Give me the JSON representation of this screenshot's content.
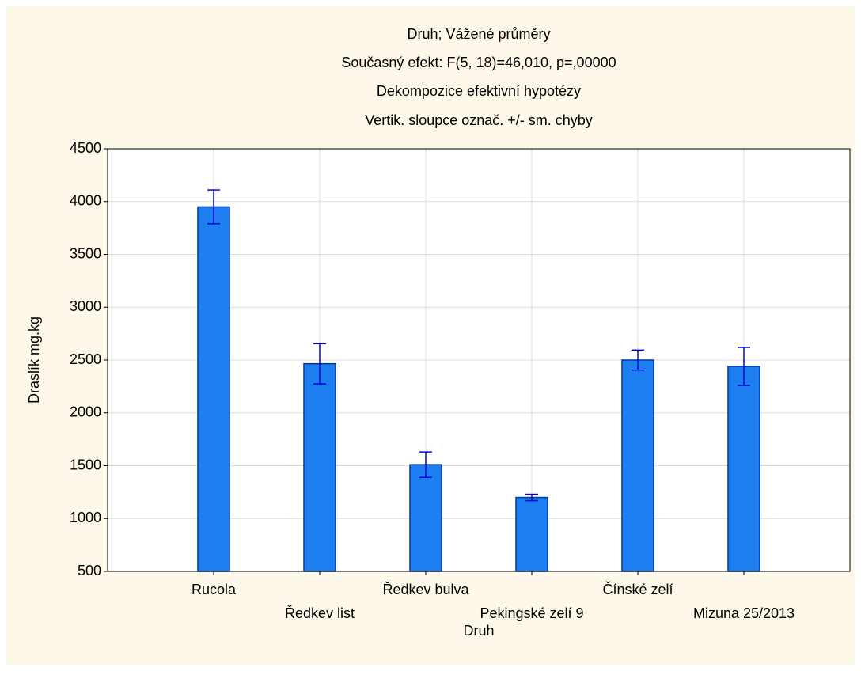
{
  "chart_data": {
    "type": "bar",
    "title": "Druh; Vážené průměry",
    "subtitles": [
      "Současný efekt: F(5, 18)=46,010, p=,00000",
      "Dekompozice efektivní hypotézy",
      "Vertik. sloupce označ. +/- sm. chyby"
    ],
    "x_label": "Druh",
    "y_label": "Draslík mg.kg",
    "categories": [
      "Rucola",
      "Ředkev list",
      "Ředkev bulva",
      "Pekingské zelí 9",
      "Čínské zelí",
      "Mizuna 25/2013"
    ],
    "values": [
      3950,
      2465,
      1510,
      1200,
      2500,
      2440
    ],
    "errors": [
      160,
      190,
      120,
      30,
      95,
      180
    ],
    "color": "#1e80f0",
    "error_color": "#0000dd",
    "ylim": [
      500,
      4500
    ],
    "yticks": [
      500,
      1000,
      1500,
      2000,
      2500,
      3000,
      3500,
      4000,
      4500
    ],
    "grid": true
  }
}
